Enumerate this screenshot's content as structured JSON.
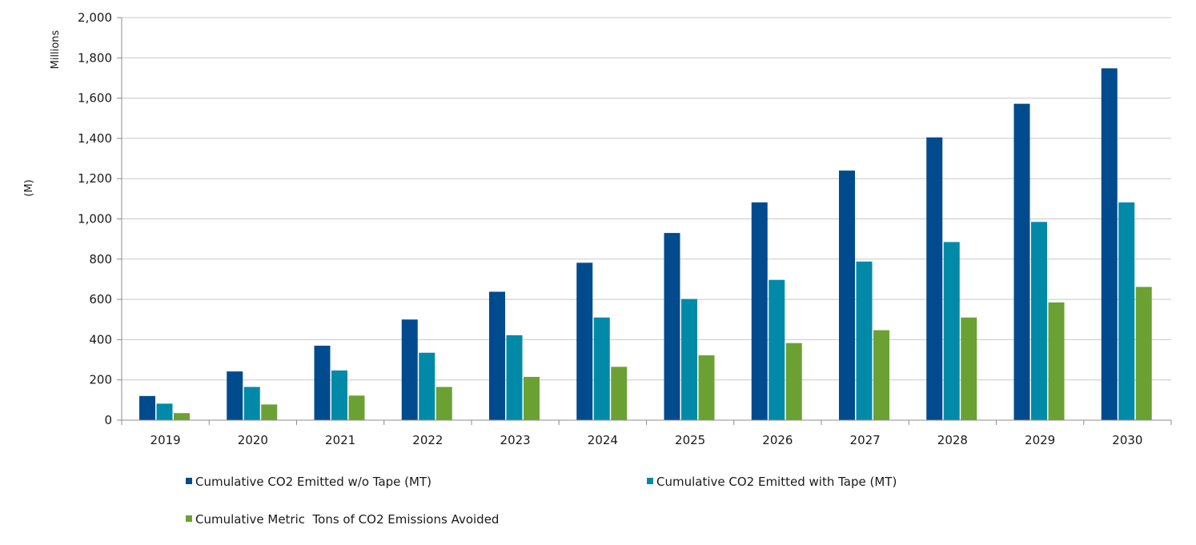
{
  "chart_data": {
    "type": "bar",
    "categories": [
      "2019",
      "2020",
      "2021",
      "2022",
      "2023",
      "2024",
      "2025",
      "2026",
      "2027",
      "2028",
      "2029",
      "2030"
    ],
    "series": [
      {
        "name": "Cumulative CO2 Emitted w/o Tape (MT)",
        "color": "#004b8d",
        "values": [
          120,
          242,
          370,
          500,
          638,
          782,
          930,
          1082,
          1240,
          1405,
          1572,
          1748
        ]
      },
      {
        "name": "Cumulative CO2 Emitted with Tape (MT)",
        "color": "#008aa8",
        "values": [
          82,
          165,
          247,
          335,
          422,
          510,
          602,
          697,
          788,
          885,
          985,
          1082
        ]
      },
      {
        "name": "Cumulative Metric  Tons of CO2 Emissions Avoided",
        "color": "#6ba133",
        "values": [
          35,
          78,
          122,
          165,
          215,
          265,
          322,
          383,
          447,
          510,
          585,
          662
        ]
      }
    ],
    "ylim": [
      0,
      2000
    ],
    "yticks": [
      0,
      200,
      400,
      600,
      800,
      1000,
      1200,
      1400,
      1600,
      1800,
      2000
    ],
    "ytick_labels": [
      "0",
      "200",
      "400",
      "600",
      "800",
      "1,000",
      "1,200",
      "1,400",
      "1,600",
      "1,800",
      "2,000"
    ],
    "ylabel": "(M)",
    "yunit_label": "Millions",
    "xlabel": "",
    "grid": true,
    "legend_position": "bottom",
    "axis_color": "#8c8c8c",
    "grid_color": "#c8c8c8"
  }
}
